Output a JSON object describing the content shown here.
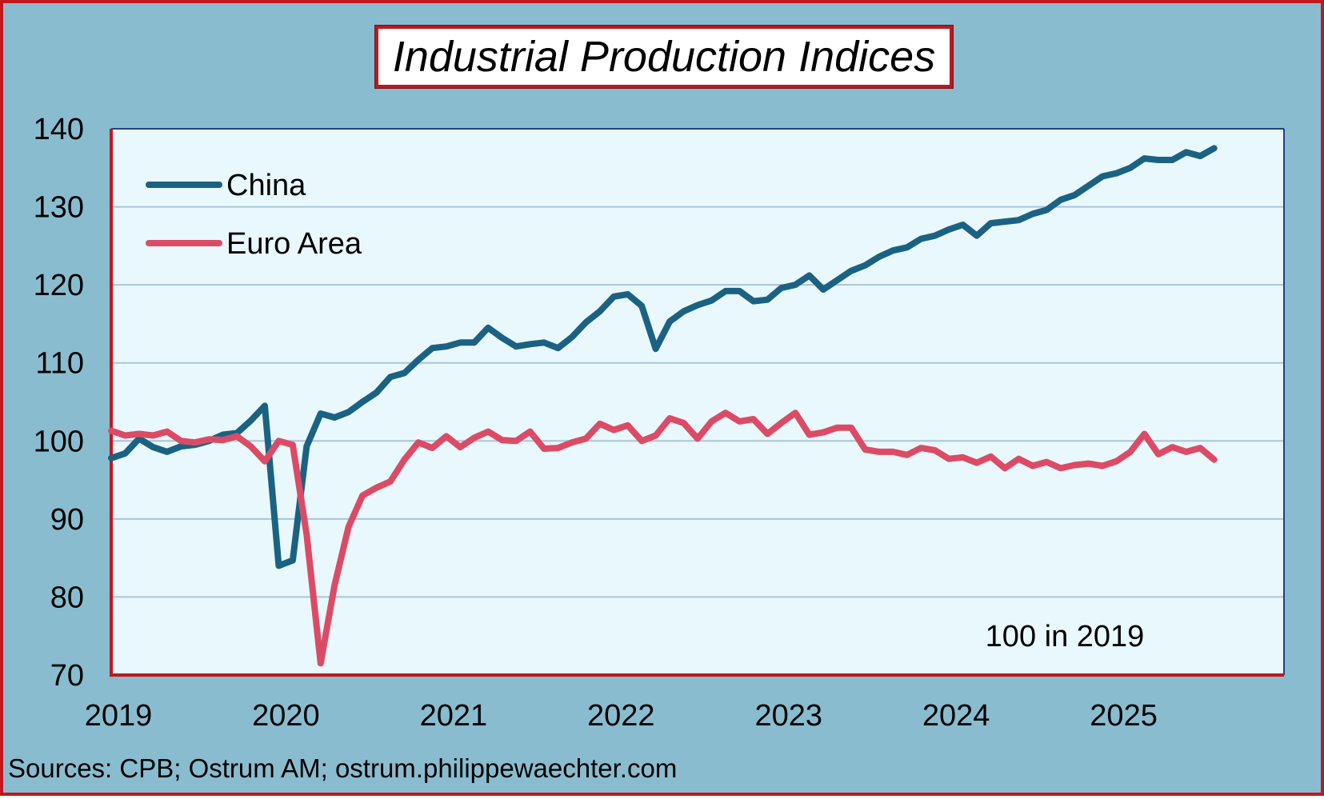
{
  "source_note": "Sources: CPB; Ostrum AM; ostrum.philippewaechter.com",
  "colors": {
    "background": "#89bccf",
    "plot_background": "#e9f8fc",
    "frame_border": "#c0181f",
    "gridline": "#a9c4dc",
    "china": "#1b6282",
    "euro_area": "#dc4b66"
  },
  "chart_data": {
    "type": "line",
    "title": "Industrial Production Indices",
    "xlabel": "",
    "ylabel": "",
    "annotation": "100 in 2019",
    "xlim": [
      2019.0,
      2026.0
    ],
    "x_ticks": [
      "2019",
      "2020",
      "2021",
      "2022",
      "2023",
      "2024",
      "2025"
    ],
    "ylim": [
      70,
      140
    ],
    "y_ticks": [
      70,
      80,
      90,
      100,
      110,
      120,
      130,
      140
    ],
    "grid": true,
    "legend": "top-left",
    "x_start": "2019-01",
    "x_frequency": "monthly",
    "series": [
      {
        "name": "China",
        "color": "#1b6282",
        "values": [
          97.8,
          98.4,
          100.3,
          99.2,
          98.6,
          99.3,
          99.5,
          100.0,
          100.8,
          101.0,
          102.6,
          104.5,
          84.0,
          84.7,
          99.3,
          103.5,
          103.0,
          103.7,
          105.0,
          106.2,
          108.2,
          108.7,
          110.4,
          111.9,
          112.1,
          112.6,
          112.6,
          114.5,
          113.2,
          112.1,
          112.4,
          112.6,
          111.9,
          113.3,
          115.2,
          116.6,
          118.5,
          118.8,
          117.3,
          111.8,
          115.3,
          116.6,
          117.4,
          118.0,
          119.2,
          119.2,
          117.9,
          118.1,
          119.6,
          120.0,
          121.2,
          119.4,
          120.6,
          121.8,
          122.5,
          123.6,
          124.4,
          124.8,
          125.9,
          126.3,
          127.1,
          127.7,
          126.3,
          127.9,
          128.1,
          128.3,
          129.1,
          129.6,
          130.9,
          131.5,
          132.7,
          133.9,
          134.3,
          135.0,
          136.2,
          136.0,
          136.0,
          137.0,
          136.5,
          137.5
        ]
      },
      {
        "name": "Euro Area",
        "color": "#dc4b66",
        "values": [
          101.3,
          100.7,
          100.9,
          100.7,
          101.2,
          100.0,
          99.8,
          100.2,
          100.1,
          100.6,
          99.3,
          97.4,
          100.0,
          99.5,
          88.0,
          71.5,
          81.5,
          89.0,
          93.0,
          94.0,
          94.8,
          97.6,
          99.8,
          99.1,
          100.6,
          99.2,
          100.4,
          101.2,
          100.1,
          100.0,
          101.2,
          99.0,
          99.1,
          99.8,
          100.3,
          102.2,
          101.4,
          102.0,
          100.0,
          100.7,
          102.9,
          102.3,
          100.3,
          102.5,
          103.6,
          102.5,
          102.8,
          100.9,
          102.3,
          103.6,
          100.8,
          101.1,
          101.7,
          101.7,
          98.9,
          98.6,
          98.6,
          98.2,
          99.1,
          98.8,
          97.7,
          97.9,
          97.2,
          98.0,
          96.5,
          97.7,
          96.8,
          97.3,
          96.5,
          96.9,
          97.1,
          96.8,
          97.4,
          98.6,
          100.9,
          98.3,
          99.2,
          98.6,
          99.1,
          97.6
        ]
      }
    ]
  }
}
